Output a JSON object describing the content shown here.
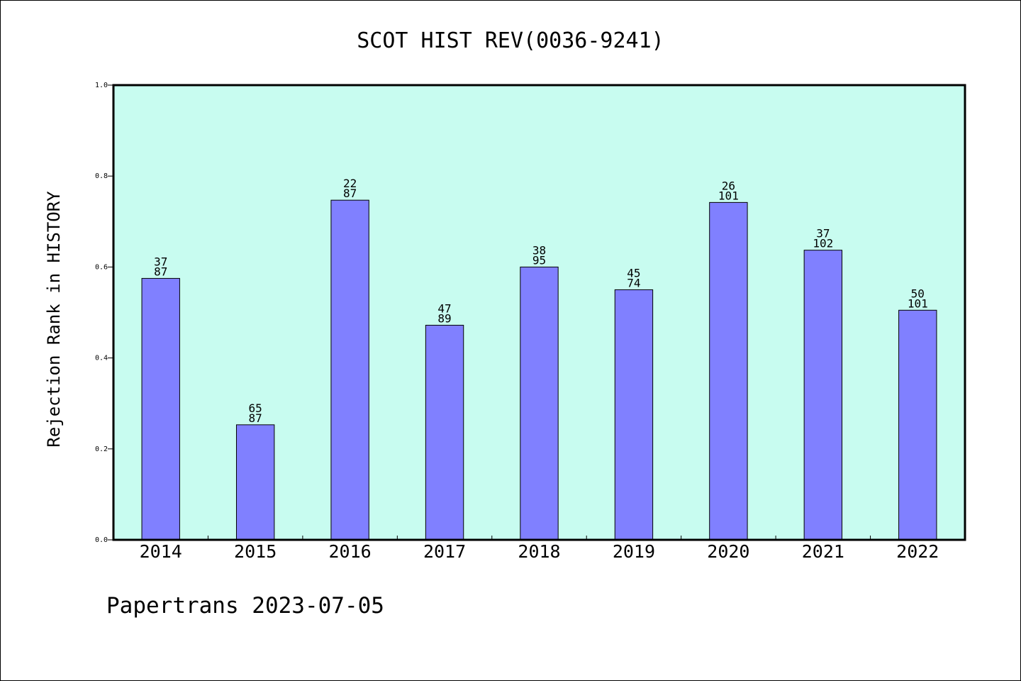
{
  "chart_data": {
    "type": "bar",
    "title": "SCOT HIST REV(0036-9241)",
    "xlabel": "",
    "ylabel": "Rejection Rank in HISTORY",
    "ylim": [
      0,
      1.0
    ],
    "yticks": [
      "0.0",
      "0.2",
      "0.4",
      "0.6",
      "0.8",
      "1.0"
    ],
    "categories": [
      "2014",
      "2015",
      "2016",
      "2017",
      "2018",
      "2019",
      "2020",
      "2021",
      "2022"
    ],
    "values": [
      0.575,
      0.253,
      0.747,
      0.472,
      0.6,
      0.55,
      0.742,
      0.637,
      0.505
    ],
    "labels_top": [
      "37",
      "65",
      "22",
      "47",
      "38",
      "45",
      "26",
      "37",
      "50"
    ],
    "labels_bottom": [
      "87",
      "87",
      "87",
      "89",
      "95",
      "74",
      "101",
      "102",
      "101"
    ],
    "grid": false,
    "colors": {
      "plot_background": "#c8fcf0",
      "bar_fill": "#8080ff",
      "bar_stroke": "#000000",
      "axes": "#000000"
    }
  },
  "footer": "Papertrans 2023-07-05"
}
